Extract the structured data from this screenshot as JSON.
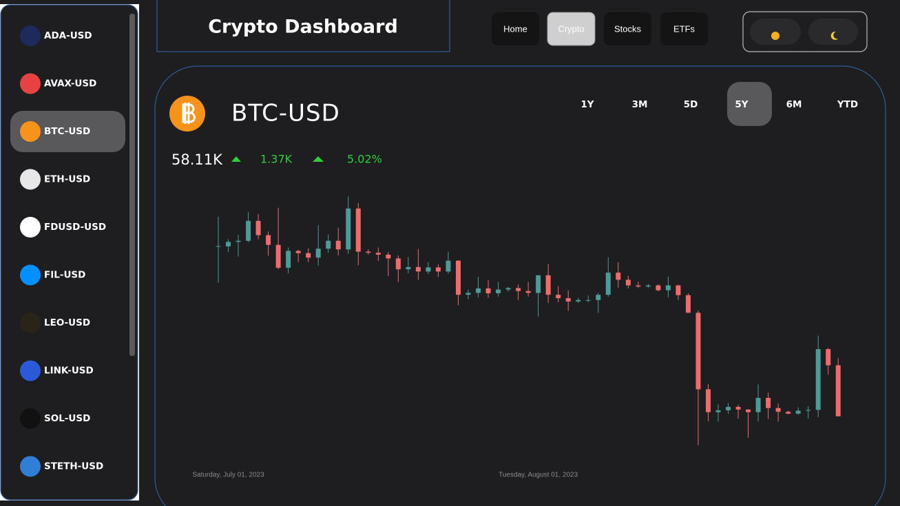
{
  "sidebar": {
    "items": [
      "ADA-USD",
      "AVAX-USD",
      "BTC-USD",
      "ETH-USD",
      "FDUSD-USD",
      "FIL-USD",
      "LEO-USD",
      "LINK-USD",
      "SOL-USD",
      "STETH-USD"
    ],
    "active": 2
  },
  "header": {
    "title": "Crypto Dashboard"
  },
  "nav": {
    "items": [
      "Home",
      "Crypto",
      "Stocks",
      "ETFs"
    ],
    "active": 1
  },
  "ticker": {
    "symbol": "BTC-USD",
    "price": "58.11K",
    "change": "1.37K",
    "change_percent": "5.02%"
  },
  "ranges": {
    "items": [
      "1Y",
      "3M",
      "5D",
      "5Y",
      "6M",
      "YTD"
    ],
    "active": 3
  },
  "chart_data": {
    "type": "candlestick",
    "x": [
      "2023-06-30",
      "2023-07-01",
      "2023-07-02",
      "2023-07-03",
      "2023-07-04",
      "2023-07-05",
      "2023-07-06",
      "2023-07-07",
      "2023-07-08",
      "2023-07-09",
      "2023-07-10",
      "2023-07-11",
      "2023-07-12",
      "2023-07-13",
      "2023-07-14",
      "2023-07-15",
      "2023-07-16",
      "2023-07-17",
      "2023-07-18",
      "2023-07-19",
      "2023-07-20",
      "2023-07-21",
      "2023-07-22",
      "2023-07-23",
      "2023-07-24",
      "2023-07-25",
      "2023-07-26",
      "2023-07-27",
      "2023-07-28",
      "2023-07-29",
      "2023-07-30",
      "2023-07-31",
      "2023-08-01",
      "2023-08-02",
      "2023-08-03",
      "2023-08-04",
      "2023-08-05",
      "2023-08-06",
      "2023-08-07",
      "2023-08-08",
      "2023-08-09",
      "2023-08-10",
      "2023-08-11",
      "2023-08-12",
      "2023-08-13",
      "2023-08-14",
      "2023-08-15",
      "2023-08-16",
      "2023-08-17",
      "2023-08-18",
      "2023-08-19",
      "2023-08-20",
      "2023-08-21",
      "2023-08-22",
      "2023-08-23",
      "2023-08-24",
      "2023-08-25",
      "2023-08-26",
      "2023-08-27",
      "2023-08-28",
      "2023-08-29",
      "2023-08-30",
      "2023-08-31"
    ],
    "open": [
      30470,
      30470,
      30590,
      30620,
      31150,
      30770,
      30510,
      29900,
      30350,
      30290,
      30170,
      30410,
      30620,
      30390,
      31480,
      30330,
      30300,
      30250,
      30150,
      29860,
      29920,
      29800,
      29910,
      29800,
      30090,
      29180,
      29230,
      29350,
      29220,
      29320,
      29360,
      29280,
      29230,
      29700,
      29180,
      29090,
      29000,
      29040,
      29040,
      29180,
      29770,
      29580,
      29430,
      29400,
      29430,
      29300,
      29430,
      29170,
      28700,
      26660,
      26050,
      26100,
      26190,
      26120,
      26050,
      26430,
      26160,
      26060,
      26010,
      26090,
      26110,
      27730,
      27300
    ],
    "high": [
      31260,
      30660,
      30780,
      31380,
      31330,
      30870,
      31500,
      30440,
      30380,
      30420,
      31040,
      30790,
      30970,
      31800,
      31630,
      30390,
      30440,
      30320,
      30230,
      30190,
      30400,
      30050,
      29990,
      30330,
      30100,
      29320,
      29660,
      29570,
      29520,
      29390,
      29450,
      29520,
      29690,
      30000,
      29410,
      29300,
      29100,
      29160,
      29230,
      30180,
      30050,
      29690,
      29530,
      29470,
      29460,
      29660,
      29450,
      29220,
      28760,
      26800,
      26260,
      26290,
      26250,
      26130,
      26790,
      26570,
      26280,
      26090,
      26180,
      26210,
      28090,
      27760,
      27490
    ],
    "low": [
      29500,
      30320,
      30200,
      30580,
      30660,
      30220,
      29860,
      29750,
      30050,
      30050,
      29960,
      30300,
      30230,
      30270,
      29970,
      30250,
      30080,
      29680,
      29520,
      29750,
      29580,
      29730,
      29660,
      29740,
      28900,
      29060,
      29110,
      29100,
      29130,
      29260,
      29040,
      29130,
      28600,
      28960,
      28980,
      28750,
      28960,
      28980,
      28700,
      29130,
      29370,
      29350,
      29360,
      29360,
      29270,
      29110,
      29040,
      28700,
      25170,
      25810,
      25800,
      26010,
      25880,
      25370,
      25800,
      25870,
      25800,
      25990,
      25980,
      25880,
      25920,
      27050,
      25970
    ],
    "close": [
      30480,
      30590,
      30620,
      31150,
      30770,
      30510,
      29900,
      30350,
      30290,
      30170,
      30410,
      30620,
      30390,
      31480,
      30330,
      30300,
      30250,
      30150,
      29860,
      29920,
      29800,
      29910,
      29800,
      30090,
      29180,
      29230,
      29350,
      29220,
      29320,
      29360,
      29280,
      29230,
      29700,
      29180,
      29090,
      29000,
      29040,
      29040,
      29180,
      29770,
      29580,
      29430,
      29400,
      29430,
      29300,
      29430,
      29170,
      28700,
      26660,
      26050,
      26100,
      26190,
      26120,
      26050,
      26430,
      26160,
      26060,
      26010,
      26090,
      26110,
      27730,
      27300,
      25940
    ],
    "up_color": "#4b9b98",
    "down_color": "#ef6b6b",
    "ylim": [
      25200,
      31900
    ],
    "xticks": [
      {
        "value": "2023-07-01",
        "label": "Saturday, July 01, 2023"
      },
      {
        "value": "2023-08-01",
        "label": "Tuesday, August 01, 2023"
      }
    ]
  }
}
